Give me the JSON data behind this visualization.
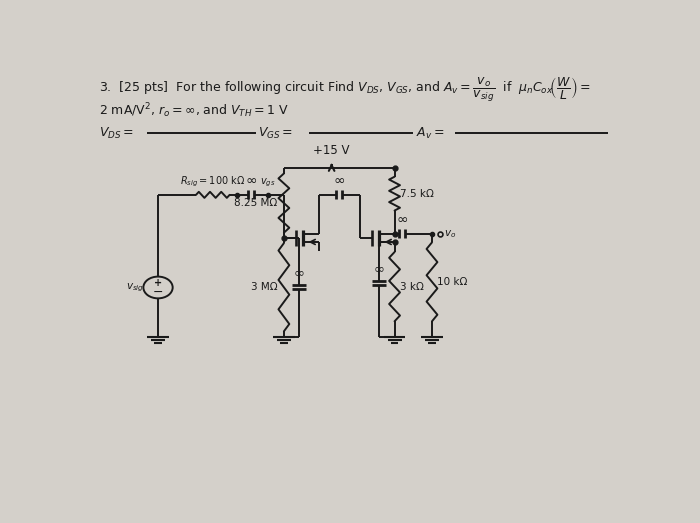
{
  "bg_color": "#d4d0ca",
  "text_color": "#1a1a1a",
  "line_color": "#1a1a1a",
  "inf_symbol": "∞",
  "r1_label": "8.25 MΩ",
  "r2_label": "3 MΩ",
  "rd_label": "7.5 kΩ",
  "rs_label": "3 kΩ",
  "rload_label": "10 kΩ",
  "rsig_label": "$R_{sig} = 100$ kΩ",
  "vdd_label": "+15 V",
  "vsig_label": "$v_{sig}$",
  "vgs_label": "$v_{gs}$",
  "vo_label": "$v_o$"
}
